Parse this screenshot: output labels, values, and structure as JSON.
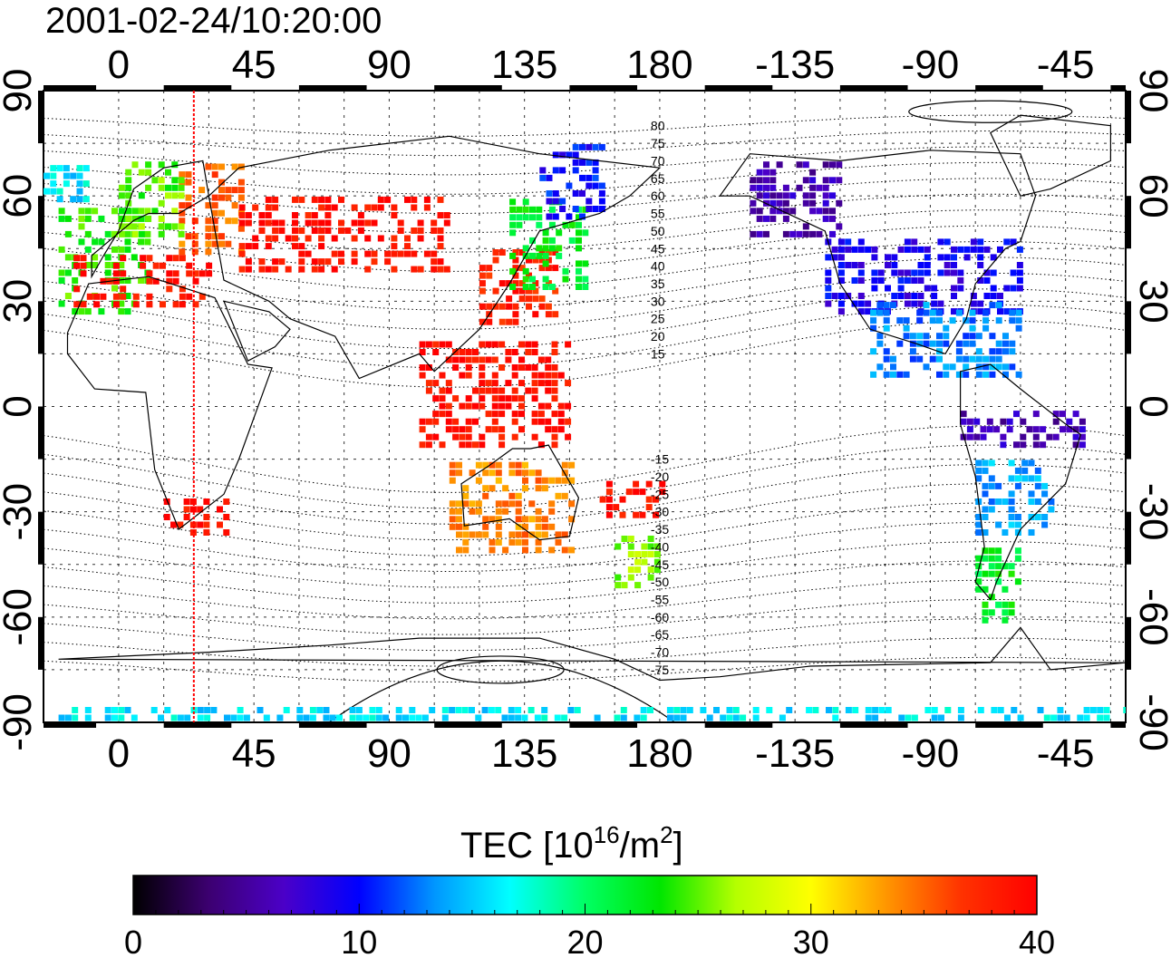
{
  "timestamp": "2001-02-24/10:20:00",
  "top_axis_ticks": [
    "0",
    "45",
    "90",
    "135",
    "180",
    "-135",
    "-90",
    "-45"
  ],
  "bottom_axis_ticks": [
    "0",
    "45",
    "90",
    "135",
    "180",
    "-135",
    "-90",
    "-45"
  ],
  "left_axis_ticks": [
    "90",
    "60",
    "30",
    "0",
    "-30",
    "-60",
    "-90"
  ],
  "right_axis_ticks": [
    "90",
    "60",
    "30",
    "0",
    "-30",
    "-60",
    "-90"
  ],
  "lon_tick_values": [
    0,
    45,
    90,
    135,
    180,
    225,
    270,
    315
  ],
  "lat_tick_values": [
    90,
    60,
    30,
    0,
    -30,
    -60,
    -90
  ],
  "contour_labels_north": [
    "80",
    "75",
    "70",
    "65",
    "60",
    "55",
    "50",
    "45",
    "40",
    "35",
    "30",
    "25",
    "20",
    "15"
  ],
  "contour_labels_south": [
    "-15",
    "-20",
    "-25",
    "-30",
    "-35",
    "-40",
    "-45",
    "-50",
    "-55",
    "-60",
    "-65",
    "-70",
    "-75"
  ],
  "colorbar": {
    "title_main": "TEC  [10",
    "title_sup1": "16",
    "title_mid": "/m",
    "title_sup2": "2",
    "title_end": "]",
    "tick_labels": [
      "0",
      "10",
      "20",
      "30",
      "40"
    ],
    "min": 0,
    "max": 40,
    "stops": [
      "#000000",
      "#3c0070",
      "#4b00c8",
      "#0000ff",
      "#0096ff",
      "#00ffff",
      "#00ff64",
      "#00e600",
      "#b4ff00",
      "#ffff00",
      "#ff9600",
      "#ff3200",
      "#ff0000"
    ]
  },
  "colors": {
    "terminator": "#ff0000",
    "coastline": "#000000",
    "grid": "#000000"
  },
  "chart_data": {
    "type": "heatmap",
    "title": "2001-02-24/10:20:00",
    "xlim": [
      -25,
      335
    ],
    "ylim": [
      -90,
      90
    ],
    "xticks": [
      0,
      45,
      90,
      135,
      180,
      -135,
      -90,
      -45
    ],
    "yticks": [
      90,
      60,
      30,
      0,
      -30,
      -60,
      -90
    ],
    "value_range": [
      0,
      40
    ],
    "colorbar_label": "TEC  [10^16/m^2]",
    "terminator_longitude": 25,
    "grid": true,
    "regions": [
      {
        "lon": [
          -20,
          10
        ],
        "lat": [
          28,
          58
        ],
        "tec": 24
      },
      {
        "lon": [
          -15,
          30
        ],
        "lat": [
          30,
          45
        ],
        "tec": 39
      },
      {
        "lon": [
          20,
          40
        ],
        "lat": [
          45,
          70
        ],
        "tec": 35
      },
      {
        "lon": [
          0,
          20
        ],
        "lat": [
          50,
          70
        ],
        "tec": 25
      },
      {
        "lon": [
          -25,
          -10
        ],
        "lat": [
          60,
          70
        ],
        "tec": 16
      },
      {
        "lon": [
          40,
          110
        ],
        "lat": [
          40,
          60
        ],
        "tec": 39
      },
      {
        "lon": [
          120,
          145
        ],
        "lat": [
          25,
          45
        ],
        "tec": 38
      },
      {
        "lon": [
          130,
          155
        ],
        "lat": [
          35,
          60
        ],
        "tec": 22
      },
      {
        "lon": [
          140,
          160
        ],
        "lat": [
          55,
          75
        ],
        "tec": 10
      },
      {
        "lon": [
          100,
          150
        ],
        "lat": [
          -10,
          20
        ],
        "tec": 39
      },
      {
        "lon": [
          15,
          35
        ],
        "lat": [
          -35,
          -25
        ],
        "tec": 39
      },
      {
        "lon": [
          110,
          150
        ],
        "lat": [
          -40,
          -15
        ],
        "tec": 34
      },
      {
        "lon": [
          160,
          180
        ],
        "lat": [
          -30,
          -20
        ],
        "tec": 39
      },
      {
        "lon": [
          165,
          180
        ],
        "lat": [
          -50,
          -35
        ],
        "tec": 26
      },
      {
        "lon": [
          210,
          240
        ],
        "lat": [
          50,
          70
        ],
        "tec": 6
      },
      {
        "lon": [
          235,
          300
        ],
        "lat": [
          28,
          50
        ],
        "tec": 9
      },
      {
        "lon": [
          250,
          300
        ],
        "lat": [
          10,
          30
        ],
        "tec": 13
      },
      {
        "lon": [
          280,
          320
        ],
        "lat": [
          -10,
          0
        ],
        "tec": 6
      },
      {
        "lon": [
          285,
          310
        ],
        "lat": [
          -35,
          -15
        ],
        "tec": 14
      },
      {
        "lon": [
          285,
          300
        ],
        "lat": [
          -60,
          -40
        ],
        "tec": 22
      },
      {
        "lon": [
          -20,
          335
        ],
        "lat": [
          -90,
          -85
        ],
        "tec": 16
      }
    ]
  }
}
